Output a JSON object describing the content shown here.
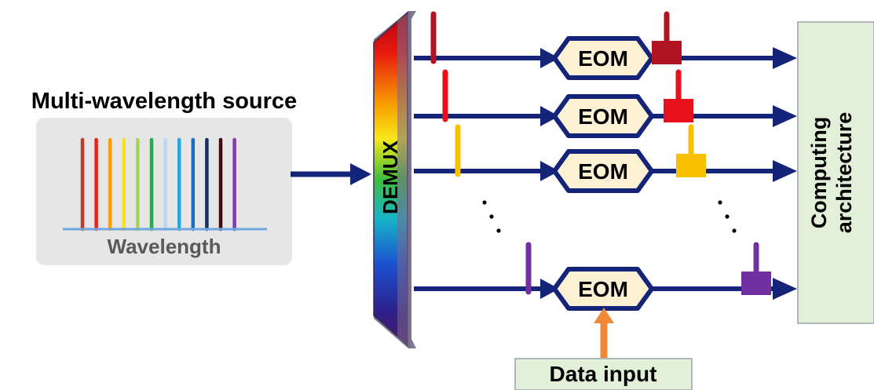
{
  "source": {
    "title": "Multi-wavelength source",
    "axis_label": "Wavelength",
    "line_colors": [
      "#c0392b",
      "#e8231f",
      "#f5a00a",
      "#f8e21a",
      "#a9d54a",
      "#1fae4c",
      "#bcd8ee",
      "#23a8e0",
      "#1a6fc0",
      "#14306a",
      "#3d0d10",
      "#7b3fa8"
    ]
  },
  "demux": {
    "label": "DEMUX"
  },
  "channels": [
    {
      "eom_label": "EOM",
      "color": "#b01420",
      "input_color": "#b01420"
    },
    {
      "eom_label": "EOM",
      "color": "#e8101a",
      "input_color": "#e8101a"
    },
    {
      "eom_label": "EOM",
      "color": "#f7c100",
      "input_color": "#f7c100"
    },
    {
      "eom_label": "EOM",
      "color": "#7030a0",
      "input_color": "#7030a0"
    }
  ],
  "ellipsis": "·  ·  ·",
  "data_input": {
    "label": "Data input",
    "arrow_color": "#f0883a"
  },
  "computing": {
    "line1": "Computing",
    "line2": "architecture",
    "fill": "#e3f0d9"
  },
  "colors": {
    "waveguide": "#142478",
    "eom_fill": "#fdf1d4",
    "eom_stroke": "#142478",
    "box_border": "#9aa0a8",
    "source_bg": "#e6e6e6"
  }
}
